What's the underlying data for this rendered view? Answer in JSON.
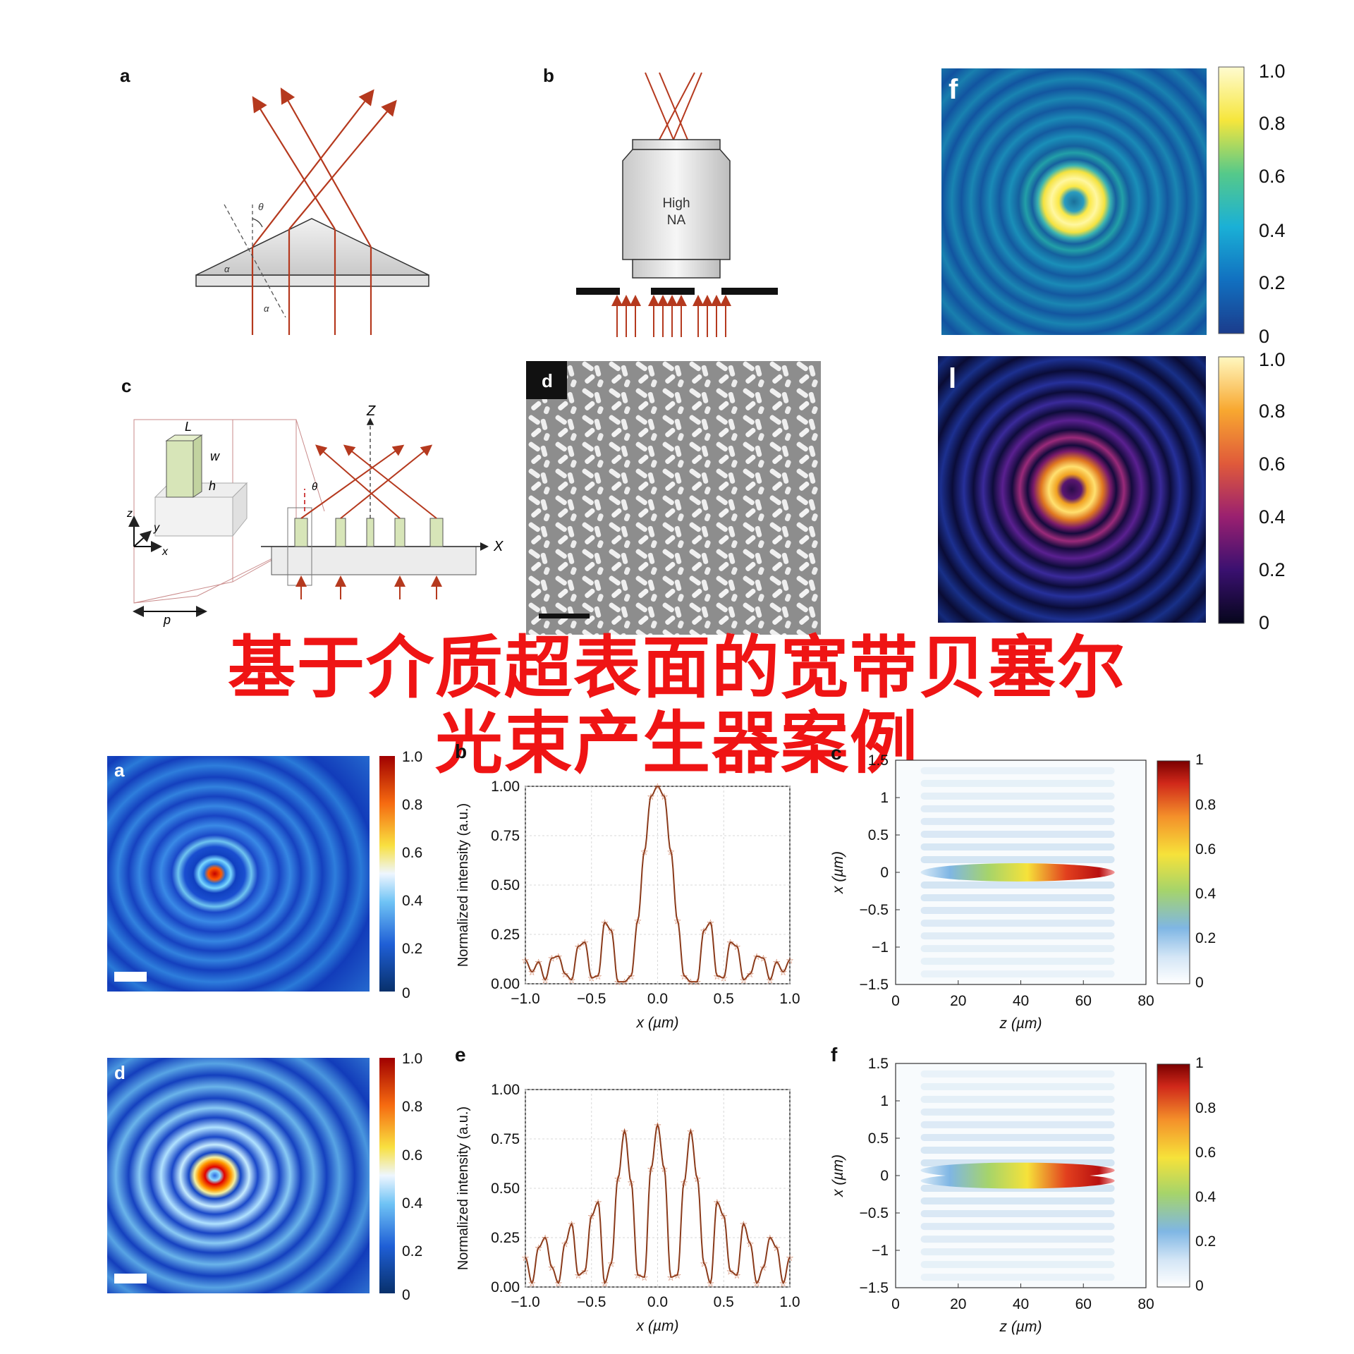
{
  "panel_labels": {
    "top_a": "a",
    "top_b": "b",
    "top_c": "c",
    "top_d": "d",
    "top_f": "f",
    "top_l": "l",
    "bot_a": "a",
    "bot_b": "b",
    "bot_c": "c",
    "bot_d": "d",
    "bot_e": "e",
    "bot_f": "f"
  },
  "objective": {
    "line1": "High",
    "line2": "NA"
  },
  "schematic_a": {
    "theta": "θ",
    "alpha1": "α",
    "alpha2": "α"
  },
  "schematic_c": {
    "L": "L",
    "w": "w",
    "h": "h",
    "z": "z",
    "y": "y",
    "x": "x",
    "p": "p",
    "Z": "Z",
    "X": "X",
    "theta": "θ"
  },
  "overlay": {
    "line1": "基于介质超表面的宽带贝塞尔",
    "line2": "光束产生器案例"
  },
  "colorbar_top": {
    "ticks": [
      "1.0",
      "0.8",
      "0.6",
      "0.4",
      "0.2",
      "0"
    ]
  },
  "colorbar_small": {
    "ticks": [
      "1.0",
      "0.8",
      "0.6",
      "0.4",
      "0.2",
      "0"
    ]
  },
  "colorbar_z": {
    "ticks": [
      "1",
      "0.8",
      "0.6",
      "0.4",
      "0.2",
      "0"
    ]
  },
  "chart_data": [
    {
      "type": "line",
      "panel": "b",
      "xlabel": "x (µm)",
      "ylabel": "Normalized intensity (a.u.)",
      "xlim": [
        -1.0,
        1.0
      ],
      "ylim": [
        0,
        1.0
      ],
      "xticks": [
        "−1.0",
        "−0.5",
        "0.0",
        "0.5",
        "1.0"
      ],
      "yticks": [
        "0.00",
        "0.25",
        "0.50",
        "0.75",
        "1.00"
      ],
      "x": [
        -1.0,
        -0.95,
        -0.9,
        -0.85,
        -0.8,
        -0.75,
        -0.7,
        -0.65,
        -0.6,
        -0.55,
        -0.5,
        -0.45,
        -0.4,
        -0.35,
        -0.3,
        -0.25,
        -0.2,
        -0.15,
        -0.1,
        -0.05,
        0.0,
        0.05,
        0.1,
        0.15,
        0.2,
        0.25,
        0.3,
        0.35,
        0.4,
        0.45,
        0.5,
        0.55,
        0.6,
        0.65,
        0.7,
        0.75,
        0.8,
        0.85,
        0.9,
        0.95,
        1.0
      ],
      "values": [
        0.12,
        0.06,
        0.11,
        0.02,
        0.13,
        0.14,
        0.05,
        0.02,
        0.19,
        0.21,
        0.03,
        0.04,
        0.31,
        0.27,
        0.01,
        0.01,
        0.04,
        0.32,
        0.67,
        0.95,
        1.0,
        0.95,
        0.67,
        0.32,
        0.04,
        0.01,
        0.01,
        0.27,
        0.31,
        0.04,
        0.03,
        0.21,
        0.19,
        0.02,
        0.05,
        0.14,
        0.13,
        0.02,
        0.11,
        0.06,
        0.12
      ]
    },
    {
      "type": "line",
      "panel": "e",
      "xlabel": "x (µm)",
      "ylabel": "Normalized intensity (a.u.)",
      "xlim": [
        -1.0,
        1.0
      ],
      "ylim": [
        0,
        1.0
      ],
      "xticks": [
        "−1.0",
        "−0.5",
        "0.0",
        "0.5",
        "1.0"
      ],
      "yticks": [
        "0.00",
        "0.25",
        "0.50",
        "0.75",
        "1.00"
      ],
      "x": [
        -1.0,
        -0.95,
        -0.9,
        -0.85,
        -0.8,
        -0.75,
        -0.7,
        -0.65,
        -0.6,
        -0.55,
        -0.5,
        -0.45,
        -0.4,
        -0.35,
        -0.3,
        -0.25,
        -0.2,
        -0.15,
        -0.1,
        -0.05,
        0.0,
        0.05,
        0.1,
        0.15,
        0.2,
        0.25,
        0.3,
        0.35,
        0.4,
        0.45,
        0.5,
        0.55,
        0.6,
        0.65,
        0.7,
        0.75,
        0.8,
        0.85,
        0.9,
        0.95,
        1.0
      ],
      "values": [
        0.15,
        0.02,
        0.2,
        0.25,
        0.1,
        0.02,
        0.22,
        0.32,
        0.06,
        0.08,
        0.36,
        0.43,
        0.02,
        0.12,
        0.55,
        0.79,
        0.53,
        0.06,
        0.05,
        0.6,
        0.82,
        0.6,
        0.05,
        0.06,
        0.53,
        0.79,
        0.55,
        0.12,
        0.02,
        0.43,
        0.36,
        0.08,
        0.06,
        0.32,
        0.22,
        0.02,
        0.1,
        0.25,
        0.2,
        0.02,
        0.15
      ]
    },
    {
      "type": "heatmap",
      "panel": "c",
      "xlabel": "z (µm)",
      "ylabel": "x (µm)",
      "xlim": [
        0,
        80
      ],
      "ylim": [
        -1.5,
        1.5
      ],
      "xticks": [
        "0",
        "20",
        "40",
        "60",
        "80"
      ],
      "yticks": [
        "1.5",
        "1",
        "0.5",
        "0",
        "−0.5",
        "−1",
        "−1.5"
      ]
    },
    {
      "type": "heatmap",
      "panel": "f",
      "xlabel": "z (µm)",
      "ylabel": "x (µm)",
      "xlim": [
        0,
        80
      ],
      "ylim": [
        -1.5,
        1.5
      ],
      "xticks": [
        "0",
        "20",
        "40",
        "60",
        "80"
      ],
      "yticks": [
        "1.5",
        "1",
        "0.5",
        "0",
        "−0.5",
        "−1",
        "−1.5"
      ]
    }
  ],
  "colors": {
    "beam": "#b5391e",
    "accent": "#ef1414"
  }
}
